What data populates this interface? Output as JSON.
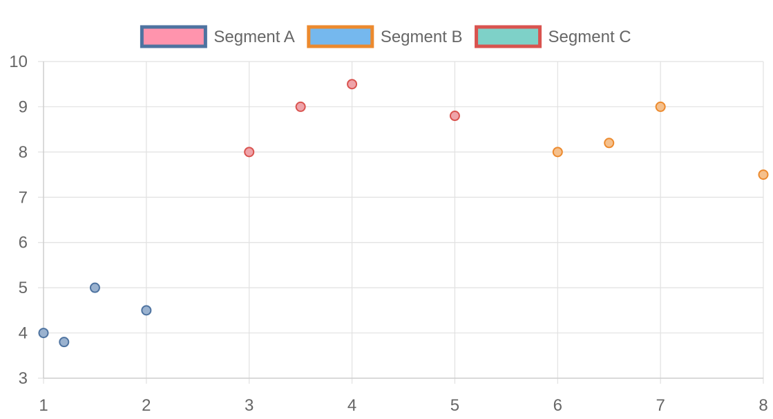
{
  "chart_data": {
    "type": "scatter",
    "title": "",
    "xlabel": "",
    "ylabel": "",
    "xlim": [
      1,
      8
    ],
    "ylim": [
      3,
      10
    ],
    "x_ticks": [
      "1",
      "2",
      "3",
      "4",
      "5",
      "6",
      "7",
      "8"
    ],
    "y_ticks": [
      "3",
      "4",
      "5",
      "6",
      "7",
      "8",
      "9",
      "10"
    ],
    "grid": true,
    "legend_position": "top",
    "series": [
      {
        "name": "Segment A",
        "legend_fill": "#ff94ad",
        "legend_stroke": "#4e73a0",
        "point_fill": "#9ab2cf",
        "point_stroke": "#4e73a0",
        "points": [
          [
            1,
            4
          ],
          [
            1.2,
            3.8
          ],
          [
            1.5,
            5
          ],
          [
            2,
            4.5
          ]
        ]
      },
      {
        "name": "Segment B",
        "legend_fill": "#75b8ee",
        "legend_stroke": "#ec8a2e",
        "point_fill": "#f5c08c",
        "point_stroke": "#ec8a2e",
        "points": [
          [
            6,
            8
          ],
          [
            6.5,
            8.2
          ],
          [
            7,
            9
          ],
          [
            8,
            7.5
          ]
        ]
      },
      {
        "name": "Segment C",
        "legend_fill": "#7ed1c8",
        "legend_stroke": "#d9534f",
        "point_fill": "#efa3a9",
        "point_stroke": "#d9534f",
        "points": [
          [
            3,
            8
          ],
          [
            3.5,
            9
          ],
          [
            4,
            9.5
          ],
          [
            5,
            8.8
          ]
        ]
      }
    ]
  }
}
